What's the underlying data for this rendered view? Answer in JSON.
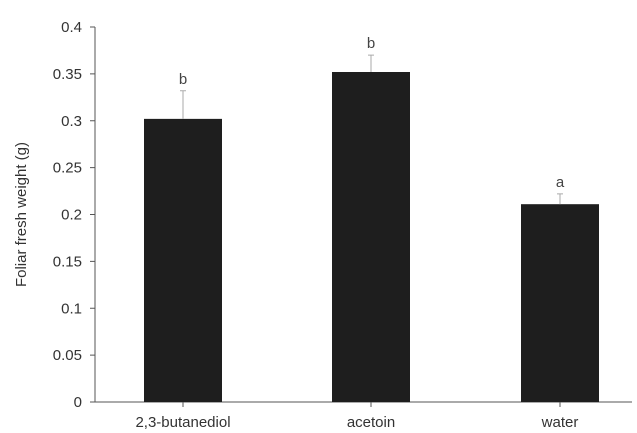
{
  "chart_data": {
    "type": "bar",
    "title": "",
    "xlabel": "",
    "ylabel": "Foliar fresh weight (g)",
    "ylim": [
      0,
      0.4
    ],
    "yticks": [
      "0",
      "0.05",
      "0.1",
      "0.15",
      "0.2",
      "0.25",
      "0.3",
      "0.35",
      "0.4"
    ],
    "grid": false,
    "categories": [
      "2,3-butanediol",
      "acetoin",
      "water"
    ],
    "values": [
      0.302,
      0.352,
      0.211
    ],
    "error_upper": [
      0.332,
      0.37,
      0.222
    ],
    "significance": [
      "b",
      "b",
      "a"
    ],
    "colors": {
      "bar": "#1e1e1e",
      "axis": "#555555",
      "text": "#333333"
    }
  }
}
